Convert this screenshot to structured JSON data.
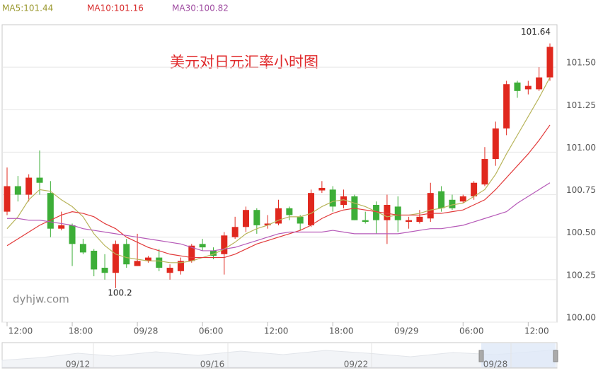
{
  "chart_data": {
    "type": "candlestick",
    "title": "美元对日元汇率小时图",
    "watermark": "dyhjw.com",
    "high_label": "101.64",
    "low_label": "100.2",
    "categories": [
      "12:00",
      null,
      null,
      null,
      null,
      null,
      "18:00",
      null,
      null,
      null,
      null,
      null,
      "09/28",
      null,
      null,
      null,
      null,
      null,
      "06:00",
      null,
      null,
      null,
      null,
      null,
      "12:00",
      null,
      null,
      null,
      null,
      null,
      "18:00",
      null,
      null,
      null,
      null,
      null,
      "09/29",
      null,
      null,
      null,
      null,
      null,
      "06:00",
      null,
      null,
      null,
      null,
      null,
      "12:00",
      null,
      null
    ],
    "open": [
      100.65,
      100.8,
      100.75,
      100.85,
      100.76,
      100.55,
      100.57,
      100.46,
      100.42,
      100.32,
      100.29,
      100.46,
      100.33,
      100.36,
      100.38,
      100.29,
      100.3,
      100.36,
      100.46,
      100.42,
      100.4,
      100.5,
      100.56,
      100.66,
      100.57,
      100.58,
      100.67,
      100.62,
      100.57,
      100.775,
      100.78,
      100.69,
      100.74,
      100.6,
      100.69,
      100.6,
      100.68,
      100.59,
      100.59,
      100.61,
      100.77,
      100.72,
      100.71,
      100.74,
      100.81,
      100.96,
      101.14,
      101.41,
      101.37,
      101.37,
      101.44
    ],
    "high": [
      100.91,
      100.86,
      100.87,
      101.01,
      100.83,
      100.65,
      100.58,
      100.49,
      100.43,
      100.4,
      100.48,
      100.49,
      100.52,
      100.39,
      100.43,
      100.34,
      100.38,
      100.46,
      100.49,
      100.44,
      100.53,
      100.62,
      100.68,
      100.67,
      100.63,
      100.72,
      100.68,
      100.63,
      100.78,
      100.83,
      100.8,
      100.78,
      100.75,
      100.65,
      100.71,
      100.75,
      100.74,
      100.62,
      100.66,
      100.82,
      100.8,
      100.75,
      100.75,
      100.83,
      101.03,
      101.18,
      101.42,
      101.42,
      101.42,
      101.5,
      101.64
    ],
    "low": [
      100.63,
      100.71,
      100.71,
      100.75,
      100.5,
      100.54,
      100.33,
      100.4,
      100.27,
      100.25,
      100.2,
      100.32,
      100.33,
      100.35,
      100.3,
      100.25,
      100.28,
      100.35,
      100.42,
      100.37,
      100.28,
      100.49,
      100.53,
      100.52,
      100.55,
      100.57,
      100.6,
      100.54,
      100.56,
      100.76,
      100.65,
      100.67,
      100.6,
      100.58,
      100.52,
      100.46,
      100.53,
      100.55,
      100.58,
      100.59,
      100.65,
      100.66,
      100.7,
      100.72,
      100.8,
      100.92,
      101.1,
      101.32,
      101.34,
      101.36,
      101.42
    ],
    "close": [
      100.8,
      100.75,
      100.85,
      100.82,
      100.55,
      100.57,
      100.46,
      100.41,
      100.31,
      100.29,
      100.46,
      100.34,
      100.36,
      100.38,
      100.32,
      100.32,
      100.36,
      100.45,
      100.44,
      100.39,
      100.51,
      100.56,
      100.66,
      100.57,
      100.58,
      100.67,
      100.63,
      100.58,
      100.76,
      100.79,
      100.68,
      100.74,
      100.6,
      100.59,
      100.6,
      100.69,
      100.6,
      100.6,
      100.62,
      100.76,
      100.67,
      100.67,
      100.74,
      100.82,
      100.96,
      101.14,
      101.4,
      101.36,
      101.39,
      101.44,
      101.62
    ],
    "up_color": "#e0281e",
    "down_color": "#3dae38",
    "series": [
      {
        "name": "MA5:101.44",
        "color": "#b8b45a",
        "label_color": "#9c9a32",
        "values": [
          100.55,
          100.62,
          100.72,
          100.78,
          100.77,
          100.72,
          100.68,
          100.62,
          100.52,
          100.45,
          100.4,
          100.38,
          100.37,
          100.36,
          100.36,
          100.35,
          100.35,
          100.36,
          100.38,
          100.4,
          100.43,
          100.47,
          100.52,
          100.55,
          100.57,
          100.6,
          100.62,
          100.62,
          100.64,
          100.68,
          100.71,
          100.72,
          100.7,
          100.68,
          100.65,
          100.62,
          100.63,
          100.63,
          100.64,
          100.66,
          100.67,
          100.69,
          100.7,
          100.74,
          100.78,
          100.87,
          100.99,
          101.1,
          101.21,
          101.32,
          101.44
        ]
      },
      {
        "name": "MA10:101.16",
        "color": "#e23a3a",
        "label_color": "#d82c2c",
        "values": [
          100.45,
          100.49,
          100.53,
          100.57,
          100.6,
          100.63,
          100.65,
          100.64,
          100.62,
          100.58,
          100.55,
          100.5,
          100.47,
          100.44,
          100.42,
          100.4,
          100.39,
          100.38,
          100.38,
          100.38,
          100.38,
          100.4,
          100.43,
          100.46,
          100.48,
          100.5,
          100.52,
          100.54,
          100.57,
          100.61,
          100.64,
          100.66,
          100.67,
          100.66,
          100.65,
          100.64,
          100.63,
          100.63,
          100.63,
          100.64,
          100.64,
          100.65,
          100.66,
          100.69,
          100.72,
          100.78,
          100.85,
          100.92,
          100.99,
          101.07,
          101.16
        ]
      },
      {
        "name": "MA30:100.82",
        "color": "#b65ab8",
        "label_color": "#a04ea2",
        "values": [
          100.61,
          100.61,
          100.6,
          100.6,
          100.59,
          100.58,
          100.57,
          100.55,
          100.54,
          100.53,
          100.52,
          100.51,
          100.5,
          100.49,
          100.48,
          100.47,
          100.46,
          100.44,
          100.42,
          100.42,
          100.43,
          100.44,
          100.46,
          100.48,
          100.5,
          100.52,
          100.53,
          100.53,
          100.53,
          100.53,
          100.54,
          100.53,
          100.52,
          100.52,
          100.52,
          100.52,
          100.52,
          100.53,
          100.54,
          100.55,
          100.55,
          100.56,
          100.57,
          100.59,
          100.61,
          100.63,
          100.65,
          100.7,
          100.74,
          100.78,
          100.82
        ]
      }
    ],
    "ylim": [
      100,
      101.75
    ],
    "yticks": [
      {
        "value": 100,
        "label": "100.00"
      },
      100.25,
      {
        "value": 100.5,
        "label": "100.50"
      },
      100.75,
      {
        "value": 101,
        "label": "101.00"
      },
      101.25,
      {
        "value": 101.5,
        "label": "101.50"
      }
    ],
    "grid": true,
    "navigator_labels": [
      "09/12",
      "09/16",
      "09/22",
      "09/28"
    ]
  }
}
